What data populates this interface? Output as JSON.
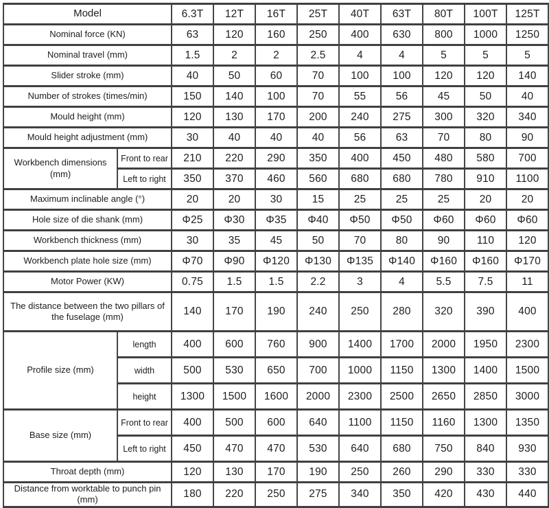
{
  "table": {
    "header": {
      "label": "Model",
      "models": [
        "6.3T",
        "12T",
        "16T",
        "25T",
        "40T",
        "63T",
        "80T",
        "100T",
        "125T"
      ]
    },
    "rows": [
      {
        "label": "Nominal force (KN)",
        "values": [
          "63",
          "120",
          "160",
          "250",
          "400",
          "630",
          "800",
          "1000",
          "1250"
        ]
      },
      {
        "label": "Nominal travel (mm)",
        "values": [
          "1.5",
          "2",
          "2",
          "2.5",
          "4",
          "4",
          "5",
          "5",
          "5"
        ]
      },
      {
        "label": "Slider stroke (mm)",
        "values": [
          "40",
          "50",
          "60",
          "70",
          "100",
          "100",
          "120",
          "120",
          "140"
        ]
      },
      {
        "label": "Number of strokes (times/min)",
        "values": [
          "150",
          "140",
          "100",
          "70",
          "55",
          "56",
          "45",
          "50",
          "40"
        ]
      },
      {
        "label": "Mould height (mm)",
        "values": [
          "120",
          "130",
          "170",
          "200",
          "240",
          "275",
          "300",
          "320",
          "340"
        ]
      },
      {
        "label": "Mould height adjustment (mm)",
        "values": [
          "30",
          "40",
          "40",
          "40",
          "56",
          "63",
          "70",
          "80",
          "90"
        ]
      },
      {
        "label": "Workbench dimensions (mm)",
        "subrows": [
          {
            "sublabel": "Front to rear",
            "values": [
              "210",
              "220",
              "290",
              "350",
              "400",
              "450",
              "480",
              "580",
              "700"
            ]
          },
          {
            "sublabel": "Left to right",
            "values": [
              "350",
              "370",
              "460",
              "560",
              "680",
              "680",
              "780",
              "910",
              "1100"
            ]
          }
        ]
      },
      {
        "label": "Maximum inclinable angle (°)",
        "values": [
          "20",
          "20",
          "30",
          "15",
          "25",
          "25",
          "25",
          "20",
          "20"
        ]
      },
      {
        "label": "Hole size of die shank (mm)",
        "values": [
          "Φ25",
          "Φ30",
          "Φ35",
          "Φ40",
          "Φ50",
          "Φ50",
          "Φ60",
          "Φ60",
          "Φ60"
        ]
      },
      {
        "label": "Workbench thickness (mm)",
        "values": [
          "30",
          "35",
          "45",
          "50",
          "70",
          "80",
          "90",
          "110",
          "120"
        ]
      },
      {
        "label": "Workbench plate hole size (mm)",
        "values": [
          "Φ70",
          "Φ90",
          "Φ120",
          "Φ130",
          "Φ135",
          "Φ140",
          "Φ160",
          "Φ160",
          "Φ170"
        ]
      },
      {
        "label": "Motor Power (KW)",
        "values": [
          "0.75",
          "1.5",
          "1.5",
          "2.2",
          "3",
          "4",
          "5.5",
          "7.5",
          "11"
        ]
      },
      {
        "label": "The distance between the two pillars of the fuselage (mm)",
        "values": [
          "140",
          "170",
          "190",
          "240",
          "250",
          "280",
          "320",
          "390",
          "400"
        ]
      },
      {
        "label": "Profile size (mm)",
        "subrows": [
          {
            "sublabel": "length",
            "values": [
              "400",
              "600",
              "760",
              "900",
              "1400",
              "1700",
              "2000",
              "1950",
              "2300"
            ]
          },
          {
            "sublabel": "width",
            "values": [
              "500",
              "530",
              "650",
              "700",
              "1000",
              "1150",
              "1300",
              "1400",
              "1500"
            ]
          },
          {
            "sublabel": "height",
            "values": [
              "1300",
              "1500",
              "1600",
              "2000",
              "2300",
              "2500",
              "2650",
              "2850",
              "3000"
            ]
          }
        ]
      },
      {
        "label": "Base size (mm)",
        "subrows": [
          {
            "sublabel": "Front to rear",
            "values": [
              "400",
              "500",
              "600",
              "640",
              "1100",
              "1150",
              "1160",
              "1300",
              "1350"
            ]
          },
          {
            "sublabel": "Left to right",
            "values": [
              "450",
              "470",
              "470",
              "530",
              "640",
              "680",
              "750",
              "840",
              "930"
            ]
          }
        ]
      },
      {
        "label": "Throat depth (mm)",
        "values": [
          "120",
          "130",
          "170",
          "190",
          "250",
          "260",
          "290",
          "330",
          "330"
        ]
      },
      {
        "label": "Distance from worktable to punch pin (mm)",
        "values": [
          "180",
          "220",
          "250",
          "275",
          "340",
          "350",
          "420",
          "430",
          "440"
        ]
      }
    ]
  }
}
